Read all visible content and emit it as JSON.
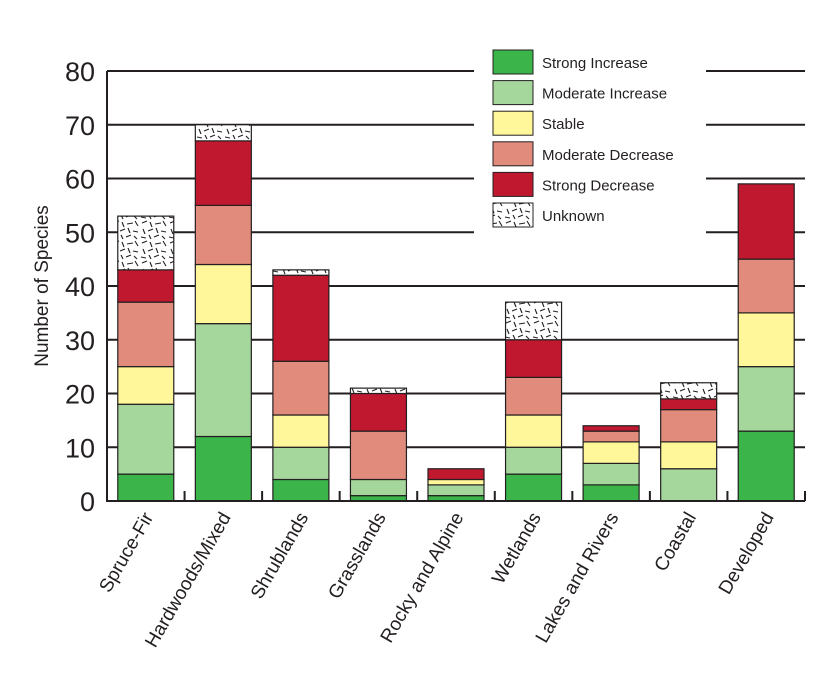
{
  "chart_data": {
    "type": "bar",
    "stacked": true,
    "title": "",
    "xlabel": "",
    "ylabel": "Number of Species",
    "ylim": [
      0,
      80
    ],
    "yticks": [
      0,
      10,
      20,
      30,
      40,
      50,
      60,
      70,
      80
    ],
    "grid": "horizontal",
    "legend_position": "top-right",
    "categories": [
      "Spruce-Fir",
      "Hardwoods/Mixed",
      "Shrublands",
      "Grasslands",
      "Rocky and Alpine",
      "Wetlands",
      "Lakes and Rivers",
      "Coastal",
      "Developed"
    ],
    "series": [
      {
        "name": "Strong Increase",
        "color": "#3bb54a",
        "values": [
          5,
          12,
          4,
          1,
          1,
          5,
          3,
          0,
          13
        ]
      },
      {
        "name": "Moderate Increase",
        "color": "#a5d79c",
        "values": [
          13,
          21,
          6,
          3,
          2,
          5,
          4,
          6,
          12
        ]
      },
      {
        "name": "Stable",
        "color": "#fff79a",
        "values": [
          7,
          11,
          6,
          0,
          1,
          6,
          4,
          5,
          10
        ]
      },
      {
        "name": "Moderate Decrease",
        "color": "#e08b7c",
        "values": [
          12,
          11,
          10,
          9,
          0,
          7,
          2,
          6,
          10
        ]
      },
      {
        "name": "Strong Decrease",
        "color": "#c0182f",
        "values": [
          6,
          12,
          16,
          7,
          2,
          7,
          1,
          2,
          14
        ]
      },
      {
        "name": "Unknown",
        "color": "hatched",
        "values": [
          10,
          3,
          1,
          1,
          0,
          7,
          0,
          3,
          0
        ]
      }
    ]
  }
}
